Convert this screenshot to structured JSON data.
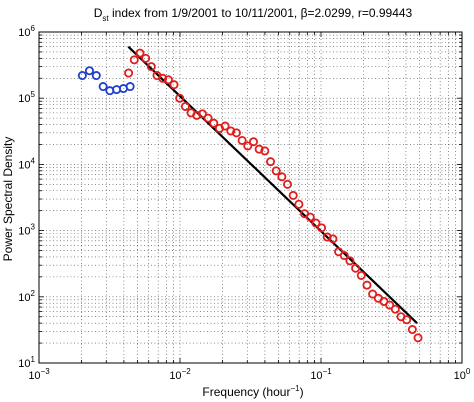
{
  "chart_data": {
    "type": "scatter",
    "title_main": "D",
    "title_sub": "st",
    "title_rest": " index from 1/9/2001 to 10/11/2001, β=2.0299, r=0.99443",
    "xlabel_pre": "Frequency (hour",
    "xlabel_sup": "−1",
    "xlabel_post": ")",
    "ylabel": "Power Spectral Density",
    "xscale": "log",
    "yscale": "log",
    "xlim": [
      0.001,
      1
    ],
    "ylim": [
      10,
      1000000
    ],
    "grid": true,
    "x_ticks": [
      {
        "base": "10",
        "exp": "−3"
      },
      {
        "base": "10",
        "exp": "−2"
      },
      {
        "base": "10",
        "exp": "−1"
      },
      {
        "base": "10",
        "exp": "0"
      }
    ],
    "y_ticks": [
      {
        "base": "10",
        "exp": "1"
      },
      {
        "base": "10",
        "exp": "2"
      },
      {
        "base": "10",
        "exp": "3"
      },
      {
        "base": "10",
        "exp": "4"
      },
      {
        "base": "10",
        "exp": "5"
      },
      {
        "base": "10",
        "exp": "6"
      }
    ],
    "series": [
      {
        "color": "#1f3fd0",
        "marker": "circle",
        "x": [
          0.00203,
          0.00228,
          0.00255,
          0.00285,
          0.00318,
          0.00355,
          0.00397,
          0.00443
        ],
        "y": [
          220000,
          260000,
          220000,
          150000,
          130000,
          135000,
          140000,
          150000
        ]
      },
      {
        "color": "#e01e1e",
        "marker": "circle",
        "x": [
          0.00432,
          0.00474,
          0.0052,
          0.00571,
          0.00626,
          0.00687,
          0.00754,
          0.00827,
          0.00907,
          0.00995,
          0.01092,
          0.01198,
          0.01314,
          0.01442,
          0.01582,
          0.01735,
          0.01904,
          0.02089,
          0.02292,
          0.02514,
          0.02758,
          0.03026,
          0.0332,
          0.03642,
          0.03996,
          0.04384,
          0.04809,
          0.05276,
          0.05788,
          0.0635,
          0.06967,
          0.07643,
          0.08385,
          0.09199,
          0.10092,
          0.11072,
          0.12147,
          0.13327,
          0.1462,
          0.1604,
          0.17597,
          0.19305,
          0.2118,
          0.23236,
          0.25492,
          0.27967,
          0.30682,
          0.33661,
          0.36929,
          0.40514,
          0.44447,
          0.48762
        ],
        "y": [
          240000,
          380000,
          480000,
          400000,
          300000,
          220000,
          200000,
          190000,
          160000,
          100000,
          75000,
          60000,
          55000,
          58000,
          50000,
          42000,
          35000,
          38000,
          32000,
          30000,
          23000,
          19000,
          22000,
          17000,
          16000,
          11000,
          8000,
          6500,
          5000,
          3400,
          2500,
          1800,
          1600,
          1300,
          1100,
          800,
          750,
          480,
          420,
          350,
          270,
          210,
          150,
          110,
          95,
          85,
          75,
          65,
          50,
          45,
          32,
          24
        ]
      }
    ],
    "fit_line": {
      "color": "#000000",
      "x": [
        0.0043,
        0.48
      ],
      "y": [
        600000,
        40
      ]
    }
  }
}
